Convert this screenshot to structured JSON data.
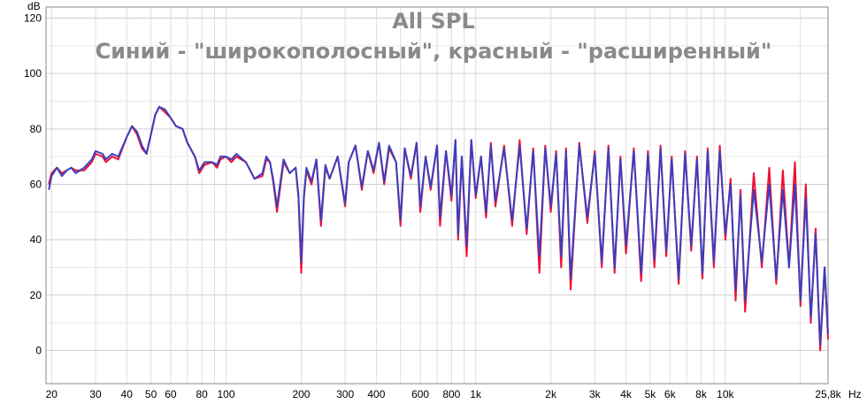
{
  "chart_data": {
    "type": "line",
    "title": "All SPL",
    "subtitle": "Синий - \"широкополосный\", красный - \"расширенный\"",
    "ylabel": "dB",
    "xlabel": "Hz",
    "x_scale": "log",
    "xlim": [
      19,
      25800
    ],
    "ylim": [
      -12,
      124
    ],
    "grid": true,
    "legend": "none",
    "y_ticks": [
      0,
      20,
      40,
      60,
      80,
      100,
      120
    ],
    "x_ticks": [
      {
        "value": 20,
        "label": "20"
      },
      {
        "value": 30,
        "label": "30"
      },
      {
        "value": 40,
        "label": "40"
      },
      {
        "value": 50,
        "label": "50"
      },
      {
        "value": 60,
        "label": "60"
      },
      {
        "value": 80,
        "label": "80"
      },
      {
        "value": 100,
        "label": "100"
      },
      {
        "value": 200,
        "label": "200"
      },
      {
        "value": 300,
        "label": "300"
      },
      {
        "value": 400,
        "label": "400"
      },
      {
        "value": 600,
        "label": "600"
      },
      {
        "value": 800,
        "label": "800"
      },
      {
        "value": 1000,
        "label": "1k"
      },
      {
        "value": 2000,
        "label": "2k"
      },
      {
        "value": 3000,
        "label": "3k"
      },
      {
        "value": 4000,
        "label": "4k"
      },
      {
        "value": 5000,
        "label": "5k"
      },
      {
        "value": 6000,
        "label": "6k"
      },
      {
        "value": 8000,
        "label": "8k"
      },
      {
        "value": 10000,
        "label": "10k"
      },
      {
        "value": 25800,
        "label": "25,8k"
      }
    ],
    "series": [
      {
        "color": "#ee1133",
        "points": [
          [
            19.5,
            60
          ],
          [
            20,
            64
          ],
          [
            21,
            66
          ],
          [
            22,
            64
          ],
          [
            23,
            65
          ],
          [
            24,
            66
          ],
          [
            25,
            65
          ],
          [
            27,
            65
          ],
          [
            29,
            68
          ],
          [
            30,
            71
          ],
          [
            32,
            70
          ],
          [
            33,
            68
          ],
          [
            35,
            70
          ],
          [
            37,
            69
          ],
          [
            40,
            77
          ],
          [
            42,
            81
          ],
          [
            44,
            78
          ],
          [
            46,
            73
          ],
          [
            48,
            71
          ],
          [
            50,
            78
          ],
          [
            52,
            85
          ],
          [
            54,
            88
          ],
          [
            57,
            86
          ],
          [
            60,
            84
          ],
          [
            63,
            81
          ],
          [
            67,
            80
          ],
          [
            70,
            75
          ],
          [
            75,
            70
          ],
          [
            78,
            64
          ],
          [
            82,
            67
          ],
          [
            88,
            68
          ],
          [
            92,
            66
          ],
          [
            95,
            69
          ],
          [
            100,
            70
          ],
          [
            105,
            68
          ],
          [
            110,
            70
          ],
          [
            120,
            68
          ],
          [
            130,
            62
          ],
          [
            140,
            63
          ],
          [
            145,
            69
          ],
          [
            150,
            68
          ],
          [
            155,
            60
          ],
          [
            160,
            50
          ],
          [
            170,
            68
          ],
          [
            180,
            64
          ],
          [
            190,
            66
          ],
          [
            195,
            55
          ],
          [
            200,
            28
          ],
          [
            205,
            55
          ],
          [
            210,
            65
          ],
          [
            220,
            60
          ],
          [
            230,
            69
          ],
          [
            240,
            45
          ],
          [
            250,
            66
          ],
          [
            260,
            62
          ],
          [
            280,
            70
          ],
          [
            300,
            52
          ],
          [
            310,
            68
          ],
          [
            330,
            74
          ],
          [
            350,
            58
          ],
          [
            370,
            72
          ],
          [
            390,
            64
          ],
          [
            410,
            75
          ],
          [
            430,
            60
          ],
          [
            450,
            73
          ],
          [
            480,
            68
          ],
          [
            500,
            45
          ],
          [
            520,
            73
          ],
          [
            550,
            62
          ],
          [
            580,
            75
          ],
          [
            600,
            50
          ],
          [
            630,
            70
          ],
          [
            660,
            58
          ],
          [
            700,
            74
          ],
          [
            720,
            45
          ],
          [
            760,
            72
          ],
          [
            800,
            54
          ],
          [
            830,
            76
          ],
          [
            850,
            40
          ],
          [
            880,
            70
          ],
          [
            920,
            34
          ],
          [
            960,
            76
          ],
          [
            1000,
            55
          ],
          [
            1050,
            70
          ],
          [
            1100,
            48
          ],
          [
            1150,
            75
          ],
          [
            1200,
            52
          ],
          [
            1300,
            74
          ],
          [
            1400,
            45
          ],
          [
            1500,
            76
          ],
          [
            1600,
            42
          ],
          [
            1700,
            73
          ],
          [
            1800,
            28
          ],
          [
            1900,
            74
          ],
          [
            2000,
            50
          ],
          [
            2100,
            72
          ],
          [
            2200,
            30
          ],
          [
            2300,
            73
          ],
          [
            2400,
            22
          ],
          [
            2600,
            75
          ],
          [
            2800,
            46
          ],
          [
            3000,
            72
          ],
          [
            3200,
            30
          ],
          [
            3400,
            74
          ],
          [
            3600,
            28
          ],
          [
            3800,
            70
          ],
          [
            4000,
            35
          ],
          [
            4300,
            73
          ],
          [
            4600,
            25
          ],
          [
            4900,
            72
          ],
          [
            5200,
            30
          ],
          [
            5500,
            74
          ],
          [
            5800,
            34
          ],
          [
            6100,
            70
          ],
          [
            6500,
            24
          ],
          [
            6900,
            72
          ],
          [
            7300,
            36
          ],
          [
            7700,
            70
          ],
          [
            8100,
            26
          ],
          [
            8500,
            73
          ],
          [
            9000,
            30
          ],
          [
            9500,
            74
          ],
          [
            10000,
            40
          ],
          [
            10500,
            62
          ],
          [
            11000,
            18
          ],
          [
            11500,
            58
          ],
          [
            12000,
            14
          ],
          [
            13000,
            64
          ],
          [
            14000,
            30
          ],
          [
            15000,
            66
          ],
          [
            16000,
            24
          ],
          [
            17000,
            65
          ],
          [
            18000,
            30
          ],
          [
            19000,
            68
          ],
          [
            20000,
            16
          ],
          [
            21000,
            60
          ],
          [
            22000,
            10
          ],
          [
            23000,
            44
          ],
          [
            24000,
            0
          ],
          [
            25000,
            30
          ],
          [
            25800,
            4
          ]
        ]
      },
      {
        "color": "#3b3fbf",
        "points": [
          [
            19.5,
            58
          ],
          [
            20,
            63
          ],
          [
            21,
            66
          ],
          [
            22,
            63
          ],
          [
            23,
            65
          ],
          [
            24,
            66
          ],
          [
            25,
            64
          ],
          [
            27,
            66
          ],
          [
            29,
            69
          ],
          [
            30,
            72
          ],
          [
            32,
            71
          ],
          [
            33,
            69
          ],
          [
            35,
            71
          ],
          [
            37,
            70
          ],
          [
            40,
            77
          ],
          [
            42,
            81
          ],
          [
            44,
            79
          ],
          [
            46,
            74
          ],
          [
            48,
            71
          ],
          [
            50,
            78
          ],
          [
            52,
            85
          ],
          [
            54,
            88
          ],
          [
            57,
            87
          ],
          [
            60,
            84
          ],
          [
            63,
            81
          ],
          [
            67,
            80
          ],
          [
            70,
            75
          ],
          [
            75,
            70
          ],
          [
            78,
            65
          ],
          [
            82,
            68
          ],
          [
            88,
            68
          ],
          [
            92,
            67
          ],
          [
            95,
            70
          ],
          [
            100,
            70
          ],
          [
            105,
            69
          ],
          [
            110,
            71
          ],
          [
            120,
            68
          ],
          [
            130,
            62
          ],
          [
            140,
            64
          ],
          [
            145,
            70
          ],
          [
            150,
            68
          ],
          [
            155,
            61
          ],
          [
            160,
            52
          ],
          [
            170,
            69
          ],
          [
            180,
            64
          ],
          [
            190,
            66
          ],
          [
            195,
            56
          ],
          [
            200,
            32
          ],
          [
            205,
            56
          ],
          [
            210,
            66
          ],
          [
            220,
            61
          ],
          [
            230,
            69
          ],
          [
            240,
            47
          ],
          [
            250,
            67
          ],
          [
            260,
            62
          ],
          [
            280,
            70
          ],
          [
            300,
            53
          ],
          [
            310,
            68
          ],
          [
            330,
            74
          ],
          [
            350,
            59
          ],
          [
            370,
            72
          ],
          [
            390,
            65
          ],
          [
            410,
            75
          ],
          [
            430,
            61
          ],
          [
            450,
            74
          ],
          [
            480,
            68
          ],
          [
            500,
            47
          ],
          [
            520,
            73
          ],
          [
            550,
            63
          ],
          [
            580,
            75
          ],
          [
            600,
            52
          ],
          [
            630,
            70
          ],
          [
            660,
            59
          ],
          [
            700,
            74
          ],
          [
            720,
            48
          ],
          [
            760,
            72
          ],
          [
            800,
            56
          ],
          [
            830,
            76
          ],
          [
            850,
            42
          ],
          [
            880,
            70
          ],
          [
            920,
            38
          ],
          [
            960,
            76
          ],
          [
            1000,
            56
          ],
          [
            1050,
            70
          ],
          [
            1100,
            50
          ],
          [
            1150,
            74
          ],
          [
            1200,
            54
          ],
          [
            1300,
            73
          ],
          [
            1400,
            47
          ],
          [
            1500,
            74
          ],
          [
            1600,
            44
          ],
          [
            1700,
            72
          ],
          [
            1800,
            34
          ],
          [
            1900,
            73
          ],
          [
            2000,
            52
          ],
          [
            2100,
            71
          ],
          [
            2200,
            34
          ],
          [
            2300,
            72
          ],
          [
            2400,
            26
          ],
          [
            2600,
            74
          ],
          [
            2800,
            48
          ],
          [
            3000,
            71
          ],
          [
            3200,
            32
          ],
          [
            3400,
            73
          ],
          [
            3600,
            30
          ],
          [
            3800,
            69
          ],
          [
            4000,
            38
          ],
          [
            4300,
            72
          ],
          [
            4600,
            28
          ],
          [
            4900,
            71
          ],
          [
            5200,
            33
          ],
          [
            5500,
            73
          ],
          [
            5800,
            36
          ],
          [
            6100,
            69
          ],
          [
            6500,
            26
          ],
          [
            6900,
            71
          ],
          [
            7300,
            38
          ],
          [
            7700,
            69
          ],
          [
            8100,
            28
          ],
          [
            8500,
            72
          ],
          [
            9000,
            32
          ],
          [
            9500,
            72
          ],
          [
            10000,
            42
          ],
          [
            10500,
            60
          ],
          [
            11000,
            22
          ],
          [
            11500,
            56
          ],
          [
            12000,
            18
          ],
          [
            13000,
            58
          ],
          [
            14000,
            32
          ],
          [
            15000,
            60
          ],
          [
            16000,
            26
          ],
          [
            17000,
            58
          ],
          [
            18000,
            30
          ],
          [
            19000,
            60
          ],
          [
            20000,
            18
          ],
          [
            21000,
            55
          ],
          [
            22000,
            12
          ],
          [
            23000,
            42
          ],
          [
            24000,
            2
          ],
          [
            25000,
            30
          ],
          [
            25800,
            6
          ]
        ]
      }
    ]
  }
}
